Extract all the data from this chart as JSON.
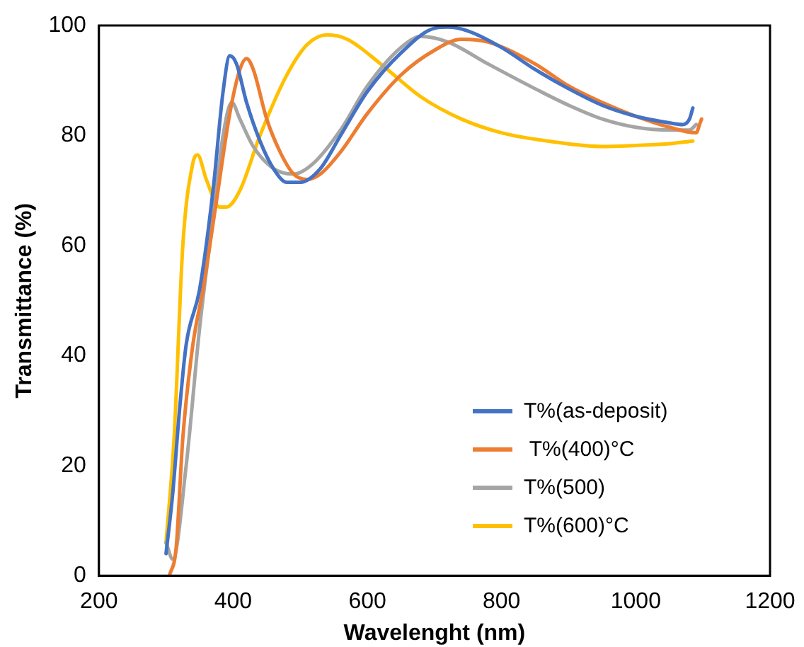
{
  "chart_data": {
    "type": "line",
    "xlabel": "Wavelenght (nm)",
    "ylabel": "Transmittance (%)",
    "xlim": [
      200,
      1200
    ],
    "xticks": [
      200,
      400,
      600,
      800,
      1000,
      1200
    ],
    "ylim": [
      0,
      100
    ],
    "yticks": [
      0,
      20,
      40,
      60,
      80,
      100
    ],
    "grid": false,
    "legend": "bottom right",
    "marker": "none",
    "line_style": "solid",
    "series": [
      {
        "name": "T%(as-deposit)",
        "color": "#4472c4",
        "x": [
          300,
          310,
          320,
          330,
          350,
          370,
          385,
          395,
          405,
          420,
          440,
          460,
          480,
          500,
          530,
          560,
          600,
          650,
          700,
          720,
          750,
          800,
          850,
          900,
          950,
          1000,
          1050,
          1070,
          1080,
          1085
        ],
        "values": [
          4,
          15,
          30,
          42,
          52,
          70,
          88,
          94.5,
          93,
          86,
          79,
          74,
          71.5,
          71.5,
          74,
          80,
          88,
          95,
          99.5,
          99.7,
          99,
          96,
          92,
          88.5,
          85.5,
          83.5,
          82.3,
          82,
          83,
          85
        ]
      },
      {
        "name": " T%(400)°C",
        "color": "#ed7d31",
        "x": [
          305,
          315,
          325,
          340,
          355,
          375,
          395,
          410,
          420,
          430,
          450,
          470,
          490,
          510,
          530,
          560,
          600,
          650,
          700,
          740,
          780,
          850,
          900,
          950,
          1000,
          1050,
          1090,
          1095,
          1098
        ],
        "values": [
          0,
          5,
          25,
          42,
          52,
          68,
          84,
          92,
          94,
          92,
          83,
          77,
          73,
          72,
          73,
          77,
          84,
          91,
          95.5,
          97.5,
          97,
          93,
          89,
          86,
          83.5,
          81.5,
          80.5,
          82,
          83
        ]
      },
      {
        "name": "T%(500)",
        "color": "#a5a5a5",
        "x": [
          300,
          310,
          330,
          350,
          370,
          385,
          398,
          410,
          430,
          460,
          490,
          520,
          560,
          600,
          650,
          680,
          720,
          780,
          850,
          900,
          950,
          1000,
          1050,
          1080,
          1090
        ],
        "values": [
          6,
          3,
          20,
          45,
          65,
          80,
          86,
          83,
          78,
          74,
          73,
          75,
          81,
          89,
          96,
          98,
          97,
          93,
          88.5,
          85.5,
          83,
          81.5,
          81,
          81,
          82
        ]
      },
      {
        "name": "T%(600)°C",
        "color": "#ffc000",
        "x": [
          300,
          312,
          325,
          340,
          347,
          360,
          380,
          390,
          410,
          440,
          480,
          510,
          540,
          570,
          620,
          680,
          740,
          800,
          880,
          950,
          1000,
          1050,
          1085
        ],
        "values": [
          6,
          25,
          60,
          75,
          76.5,
          72,
          67,
          67,
          70,
          80,
          91,
          96.5,
          98.3,
          97.5,
          93,
          87,
          83,
          80.5,
          78.8,
          78,
          78.2,
          78.5,
          79
        ]
      }
    ]
  }
}
